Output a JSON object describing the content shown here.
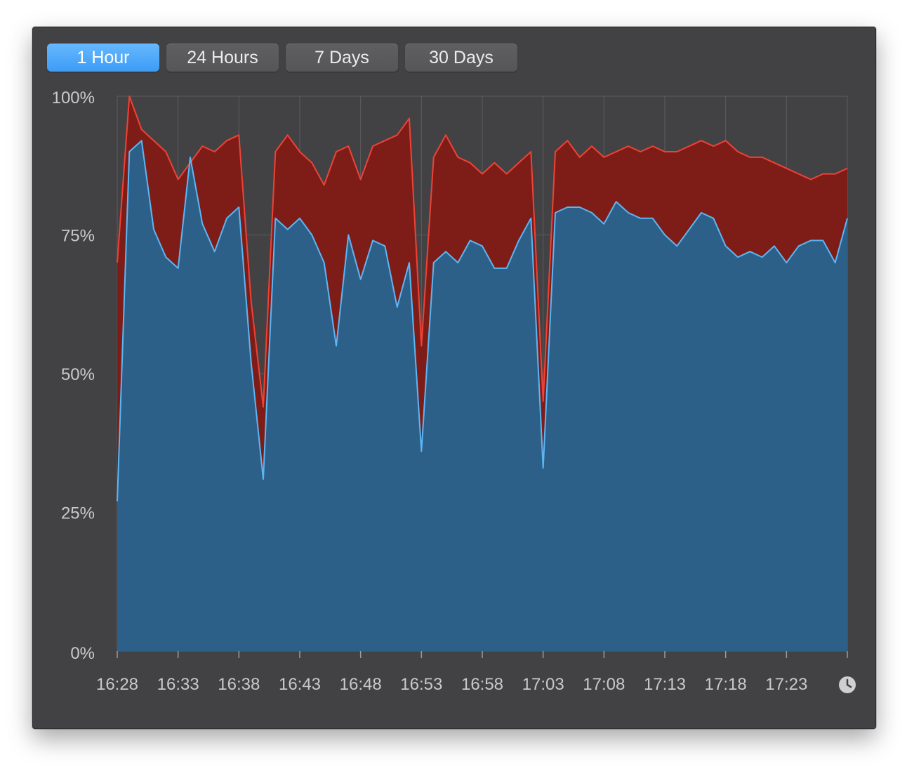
{
  "tabs": [
    {
      "label": "1 Hour",
      "active": true
    },
    {
      "label": "24 Hours",
      "active": false
    },
    {
      "label": "7 Days",
      "active": false
    },
    {
      "label": "30 Days",
      "active": false
    }
  ],
  "colors": {
    "blue_fill": "#2d6088",
    "blue_line": "#5bb6f4",
    "red_fill": "#7e1d18",
    "red_line": "#ee4236",
    "grid": "#5c5c60",
    "background": "#424244"
  },
  "icons": {
    "history": "clock-icon"
  },
  "chart_data": {
    "type": "area",
    "title": "",
    "xlabel": "",
    "ylabel": "",
    "ylim": [
      0,
      100
    ],
    "y_ticks": [
      "0%",
      "25%",
      "50%",
      "75%",
      "100%"
    ],
    "x_ticks": [
      "16:28",
      "16:33",
      "16:38",
      "16:43",
      "16:48",
      "16:53",
      "16:58",
      "17:03",
      "17:08",
      "17:13",
      "17:18",
      "17:23"
    ],
    "grid": true,
    "x": [
      "16:28",
      "16:29",
      "16:30",
      "16:31",
      "16:32",
      "16:33",
      "16:34",
      "16:35",
      "16:36",
      "16:37",
      "16:38",
      "16:39",
      "16:40",
      "16:41",
      "16:42",
      "16:43",
      "16:44",
      "16:45",
      "16:46",
      "16:47",
      "16:48",
      "16:49",
      "16:50",
      "16:51",
      "16:52",
      "16:53",
      "16:54",
      "16:55",
      "16:56",
      "16:57",
      "16:58",
      "16:59",
      "17:00",
      "17:01",
      "17:02",
      "17:03",
      "17:04",
      "17:05",
      "17:06",
      "17:07",
      "17:08",
      "17:09",
      "17:10",
      "17:11",
      "17:12",
      "17:13",
      "17:14",
      "17:15",
      "17:16",
      "17:17",
      "17:18",
      "17:19",
      "17:20",
      "17:21",
      "17:22",
      "17:23",
      "17:24",
      "17:25",
      "17:26",
      "17:27",
      "17:28"
    ],
    "series": [
      {
        "values": [
          27,
          90,
          92,
          76,
          71,
          69,
          89,
          77,
          72,
          78,
          80,
          52,
          31,
          78,
          76,
          78,
          75,
          70,
          55,
          75,
          67,
          74,
          73,
          62,
          70,
          36,
          70,
          72,
          70,
          74,
          73,
          69,
          69,
          74,
          78,
          33,
          79,
          80,
          80,
          79,
          77,
          81,
          79,
          78,
          78,
          75,
          73,
          76,
          79,
          78,
          73,
          71,
          72,
          71,
          73,
          70,
          73,
          74,
          74,
          70,
          78
        ]
      },
      {
        "values": [
          70,
          100,
          94,
          92,
          90,
          85,
          88,
          91,
          90,
          92,
          93,
          63,
          44,
          90,
          93,
          90,
          88,
          84,
          90,
          91,
          85,
          91,
          92,
          93,
          96,
          55,
          89,
          93,
          89,
          88,
          86,
          88,
          86,
          88,
          90,
          45,
          90,
          92,
          89,
          91,
          89,
          90,
          91,
          90,
          91,
          90,
          90,
          91,
          92,
          91,
          92,
          90,
          89,
          89,
          88,
          87,
          86,
          85,
          86,
          86,
          87
        ]
      }
    ]
  }
}
